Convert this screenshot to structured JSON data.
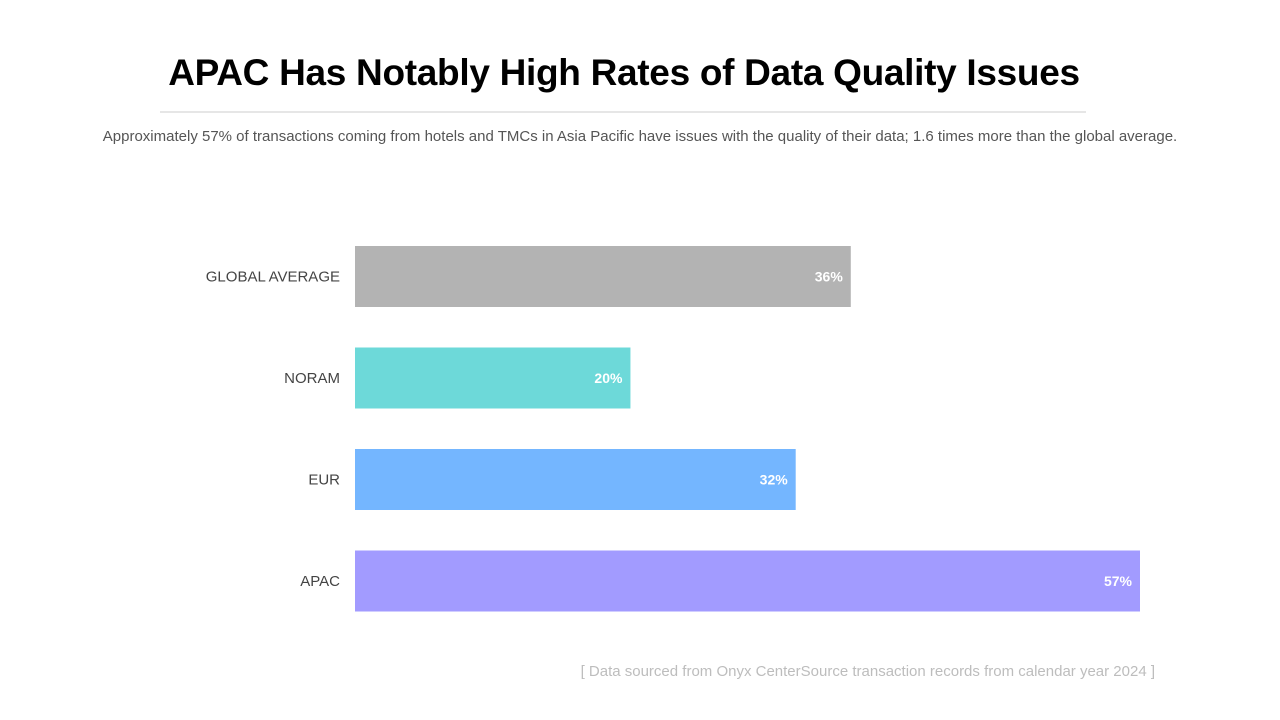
{
  "slide": {
    "title": "APAC Has Notably High Rates of Data Quality Issues",
    "subtitle": "Approximately 57% of transactions coming from hotels and TMCs in Asia Pacific have issues with the quality of their data; 1.6 times more than the global average.",
    "source": "[ Data sourced from Onyx CenterSource transaction records from calendar year 2024 ]"
  },
  "chart_data": {
    "type": "bar",
    "orientation": "horizontal",
    "title": "",
    "xlabel": "",
    "ylabel": "",
    "categories": [
      "GLOBAL AVERAGE",
      "NORAM",
      "EUR",
      "APAC"
    ],
    "values": [
      36,
      20,
      32,
      57
    ],
    "value_labels": [
      "36%",
      "20%",
      "32%",
      "57%"
    ],
    "colors": [
      "#b3b3b3",
      "#6dd9d9",
      "#74b6ff",
      "#a29bff"
    ],
    "xlim": [
      0,
      57
    ],
    "grid": false,
    "legend": false
  }
}
